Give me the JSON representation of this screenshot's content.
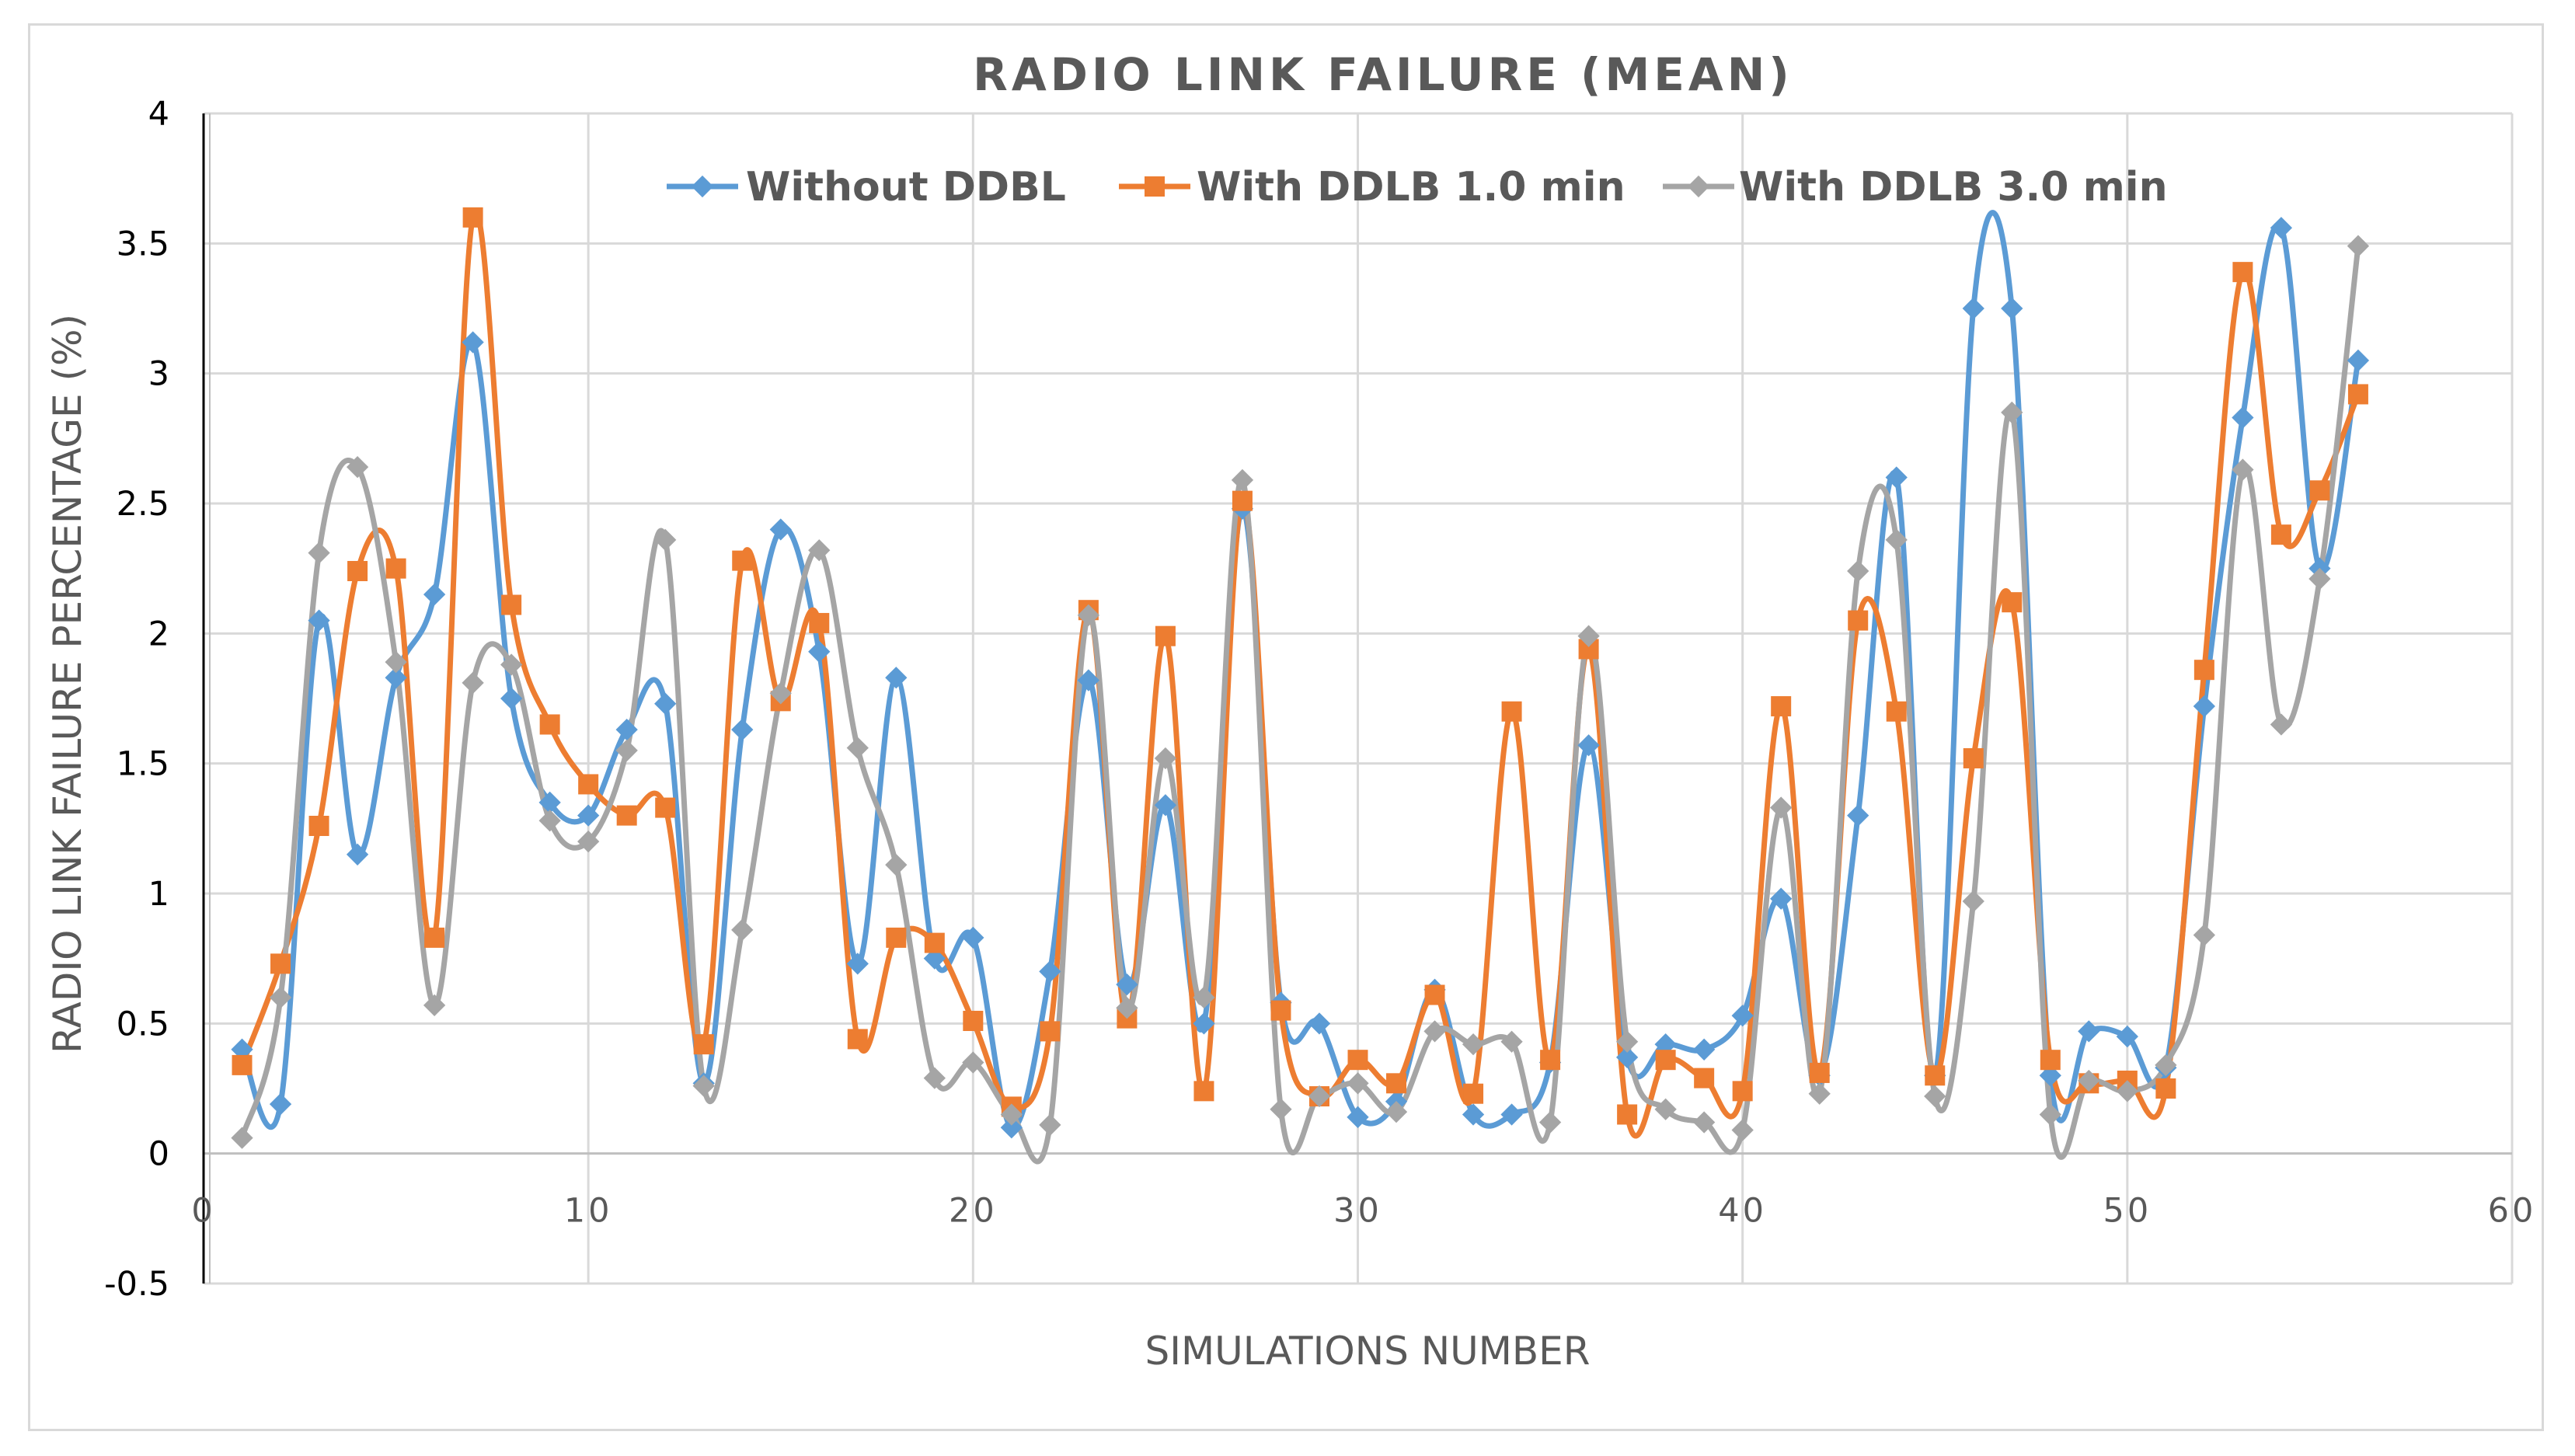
{
  "chart_data": {
    "type": "line",
    "title": "RADIO LINK FAILURE (MEAN)",
    "xlabel": "SIMULATIONS NUMBER",
    "ylabel": "RADIO LINK FAILURE PERCENTAGE (%)",
    "xlim": [
      0,
      60
    ],
    "ylim": [
      -0.5,
      4
    ],
    "xticks": [
      0,
      10,
      20,
      30,
      40,
      50,
      60
    ],
    "yticks": [
      -0.5,
      0,
      0.5,
      1,
      1.5,
      2,
      2.5,
      3,
      3.5,
      4
    ],
    "xtick_labels": [
      "0",
      "10",
      "20",
      "30",
      "40",
      "50",
      "60"
    ],
    "ytick_labels": [
      "-0.5",
      "0",
      "0.5",
      "1",
      "1.5",
      "2",
      "2.5",
      "3",
      "3.5",
      "4"
    ],
    "grid": true,
    "legend_position": "top",
    "x": [
      1,
      2,
      3,
      4,
      5,
      6,
      7,
      8,
      9,
      10,
      11,
      12,
      13,
      14,
      15,
      16,
      17,
      18,
      19,
      20,
      21,
      22,
      23,
      24,
      25,
      26,
      27,
      28,
      29,
      30,
      31,
      32,
      33,
      34,
      35,
      36,
      37,
      38,
      39,
      40,
      41,
      42,
      43,
      44,
      45,
      46,
      47,
      48,
      49,
      50,
      51,
      52,
      53,
      54,
      55,
      56
    ],
    "series": [
      {
        "name": "Without DDBL",
        "color": "#5b9bd5",
        "marker": "diamond",
        "values": [
          0.4,
          0.19,
          2.05,
          1.15,
          1.83,
          2.15,
          3.12,
          1.75,
          1.35,
          1.3,
          1.63,
          1.73,
          0.27,
          1.63,
          2.4,
          1.93,
          0.73,
          1.83,
          0.75,
          0.83,
          0.1,
          0.7,
          1.82,
          0.65,
          1.34,
          0.5,
          2.48,
          0.58,
          0.5,
          0.14,
          0.2,
          0.63,
          0.15,
          0.15,
          0.35,
          1.57,
          0.37,
          0.42,
          0.4,
          0.53,
          0.98,
          0.3,
          1.3,
          2.6,
          0.3,
          3.25,
          3.25,
          0.3,
          0.47,
          0.45,
          0.33,
          1.72,
          2.83,
          3.56,
          2.25,
          3.05
        ]
      },
      {
        "name": "With DDLB 1.0 min",
        "color": "#ed7d31",
        "marker": "square",
        "values": [
          0.34,
          0.73,
          1.26,
          2.24,
          2.25,
          0.83,
          3.6,
          2.11,
          1.65,
          1.42,
          1.3,
          1.33,
          0.42,
          2.28,
          1.74,
          2.04,
          0.44,
          0.83,
          0.81,
          0.51,
          0.18,
          0.47,
          2.09,
          0.52,
          1.99,
          0.24,
          2.51,
          0.55,
          0.22,
          0.36,
          0.27,
          0.61,
          0.23,
          1.7,
          0.36,
          1.94,
          0.15,
          0.36,
          0.29,
          0.24,
          1.72,
          0.31,
          2.05,
          1.7,
          0.3,
          1.52,
          2.12,
          0.36,
          0.27,
          0.28,
          0.25,
          1.86,
          3.39,
          2.38,
          2.55,
          2.92
        ]
      },
      {
        "name": "With DDLB 3.0 min",
        "color": "#a5a5a5",
        "marker": "diamond",
        "values": [
          0.06,
          0.6,
          2.31,
          2.64,
          1.89,
          0.57,
          1.81,
          1.88,
          1.28,
          1.2,
          1.55,
          2.36,
          0.26,
          0.86,
          1.77,
          2.32,
          1.56,
          1.11,
          0.29,
          0.35,
          0.15,
          0.11,
          2.07,
          0.56,
          1.52,
          0.6,
          2.59,
          0.17,
          0.22,
          0.27,
          0.16,
          0.47,
          0.42,
          0.43,
          0.12,
          1.99,
          0.43,
          0.17,
          0.12,
          0.09,
          1.33,
          0.23,
          2.24,
          2.36,
          0.22,
          0.97,
          2.85,
          0.15,
          0.28,
          0.24,
          0.34,
          0.84,
          2.63,
          1.65,
          2.21,
          3.49
        ]
      }
    ]
  }
}
